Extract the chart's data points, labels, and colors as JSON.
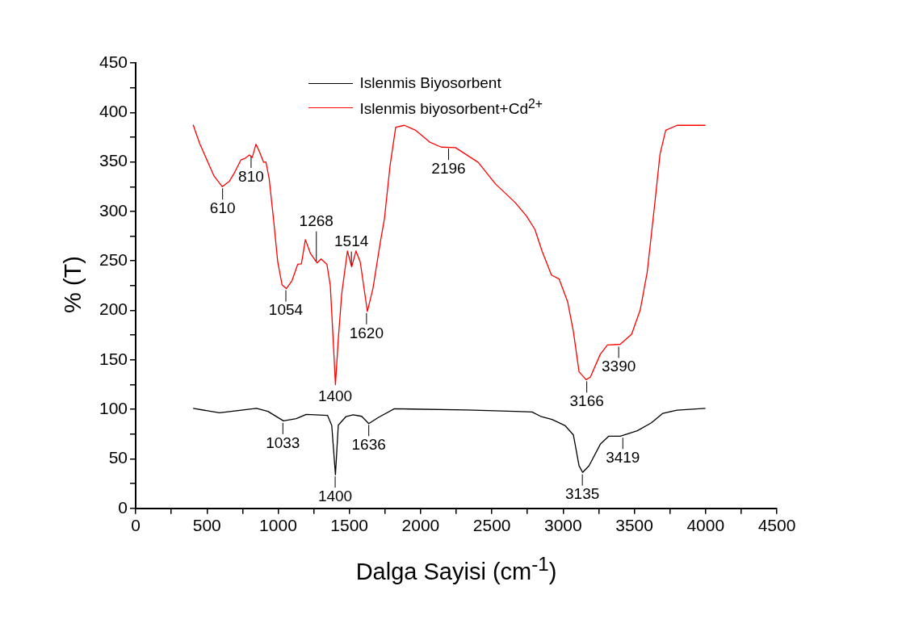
{
  "chart_data": {
    "type": "line",
    "xlabel": "Dalga Sayisi (cm$^{-1}$)",
    "ylabel": "% (T)",
    "xlim": [
      0,
      4500
    ],
    "ylim": [
      0,
      450
    ],
    "xticks": [
      0,
      {
        "value": 250,
        "label": null
      },
      500,
      {
        "value": 750,
        "label": null
      },
      1000,
      {
        "value": 1250,
        "label": null
      },
      1500,
      {
        "value": 1750,
        "label": null
      },
      2000,
      {
        "value": 2250,
        "label": null
      },
      2500,
      {
        "value": 2750,
        "label": null
      },
      3000,
      {
        "value": 3250,
        "label": null
      },
      3500,
      {
        "value": 3750,
        "label": null
      },
      4000,
      {
        "value": 4250,
        "label": null
      },
      4500
    ],
    "yticks": [
      0,
      {
        "value": 25,
        "label": null
      },
      50,
      {
        "value": 75,
        "label": null
      },
      100,
      {
        "value": 125,
        "label": null
      },
      150,
      {
        "value": 175,
        "label": null
      },
      200,
      {
        "value": 225,
        "label": null
      },
      250,
      {
        "value": 275,
        "label": null
      },
      300,
      {
        "value": 325,
        "label": null
      },
      350,
      {
        "value": 375,
        "label": null
      },
      400,
      {
        "value": 425,
        "label": null
      },
      450
    ],
    "grid": false,
    "legend": "top",
    "marker": "none",
    "line_style": "solid",
    "series": [
      {
        "name": "Islenmis Biyosorbent",
        "color": "#000000",
        "x": [
          403,
          588,
          848,
          928,
          1037,
          1127,
          1197,
          1346,
          1376,
          1402,
          1422,
          1476,
          1526,
          1586,
          1636,
          1705,
          1815,
          2324,
          2663,
          2782,
          2842,
          2922,
          3012,
          3072,
          3112,
          3137,
          3182,
          3261,
          3321,
          3401,
          3521,
          3620,
          3700,
          3800,
          3999
        ],
        "values": [
          101,
          96.6,
          101,
          98,
          88.4,
          90.6,
          95,
          94,
          83.8,
          34,
          84,
          92.8,
          94.6,
          93,
          85.7,
          92,
          100.6,
          99.5,
          98,
          97.4,
          93,
          89.8,
          83.8,
          74.3,
          43,
          36.3,
          43,
          64.8,
          73,
          73,
          78.4,
          86.5,
          96,
          99.3,
          101
        ]
      },
      {
        "name": "Islenmis biyosorbent+Cd$^{2+}$",
        "color": "#ff0000",
        "x": [
          403,
          449,
          549,
          608,
          658,
          688,
          738,
          768,
          798,
          818,
          844,
          868,
          898,
          914,
          937,
          967,
          997,
          1027,
          1057,
          1097,
          1137,
          1163,
          1191,
          1227,
          1273,
          1301,
          1342,
          1366,
          1386,
          1402,
          1422,
          1446,
          1486,
          1516,
          1546,
          1576,
          1626,
          1665,
          1716,
          1746,
          1786,
          1825,
          1885,
          1965,
          2064,
          2144,
          2244,
          2404,
          2524,
          2663,
          2743,
          2802,
          2852,
          2918,
          2972,
          3032,
          3072,
          3112,
          3161,
          3191,
          3261,
          3311,
          3401,
          3481,
          3541,
          3590,
          3640,
          3680,
          3720,
          3800,
          3999
        ],
        "values": [
          387.6,
          368.6,
          336,
          325,
          330.6,
          337.7,
          352,
          353.7,
          357,
          354.5,
          368,
          360.5,
          349.6,
          350,
          333,
          292.7,
          249,
          226,
          222,
          230,
          246.6,
          247,
          271.5,
          257.4,
          248,
          252,
          246.6,
          225,
          170.6,
          125,
          171,
          216.7,
          260,
          244,
          260,
          249,
          199,
          222,
          268,
          292.7,
          347,
          385,
          387,
          382,
          370,
          365,
          364.5,
          349.6,
          328,
          309,
          295.4,
          281.8,
          260,
          235.7,
          231.7,
          208.6,
          178.8,
          138,
          130,
          132.6,
          155.7,
          165,
          165.8,
          176,
          200.4,
          238.4,
          303.5,
          357.8,
          382,
          387,
          387
        ]
      }
    ],
    "annotations": [
      {
        "text": "610",
        "x": 610,
        "y": 325
      },
      {
        "text": "810",
        "x": 810,
        "y": 357
      },
      {
        "text": "1054",
        "x": 1054,
        "y": 222
      },
      {
        "text": "1268",
        "x": 1268,
        "y": 248
      },
      {
        "text": "1400",
        "x": 1400,
        "y": 125
      },
      {
        "text": "1514",
        "x": 1514,
        "y": 244
      },
      {
        "text": "1620",
        "x": 1620,
        "y": 199
      },
      {
        "text": "2196",
        "x": 2196,
        "y": 365
      },
      {
        "text": "3166",
        "x": 3166,
        "y": 130
      },
      {
        "text": "3390",
        "x": 3390,
        "y": 165
      },
      {
        "text": "1033",
        "x": 1033,
        "y": 88
      },
      {
        "text": "1400",
        "x": 1400,
        "y": 34
      },
      {
        "text": "1636",
        "x": 1636,
        "y": 86
      },
      {
        "text": "3135",
        "x": 3135,
        "y": 36
      },
      {
        "text": "3419",
        "x": 3419,
        "y": 73
      }
    ]
  }
}
